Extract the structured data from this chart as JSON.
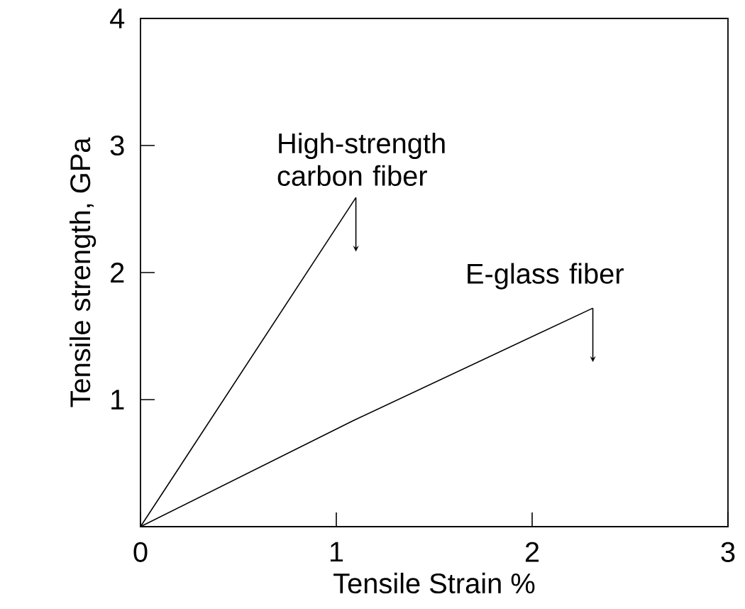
{
  "chart_data": {
    "type": "line",
    "xlabel": "Tensile Strain  %",
    "ylabel": "Tensile strength, GPa",
    "xlim": [
      0,
      3
    ],
    "ylim": [
      0,
      4
    ],
    "xticks": [
      0,
      1,
      2,
      3
    ],
    "yticks": [
      1,
      2,
      3,
      4
    ],
    "grid": false,
    "legend": false,
    "marker": "none",
    "line_style": "solid",
    "series": [
      {
        "name": "High-strength carbon fiber",
        "color": "#000000",
        "x": [
          0,
          1.1
        ],
        "values": [
          0,
          2.59
        ]
      },
      {
        "name": "E-glass fiber",
        "color": "#000000",
        "x": [
          0,
          1.08,
          2.31
        ],
        "values": [
          0,
          0.83,
          1.72
        ]
      }
    ]
  }
}
